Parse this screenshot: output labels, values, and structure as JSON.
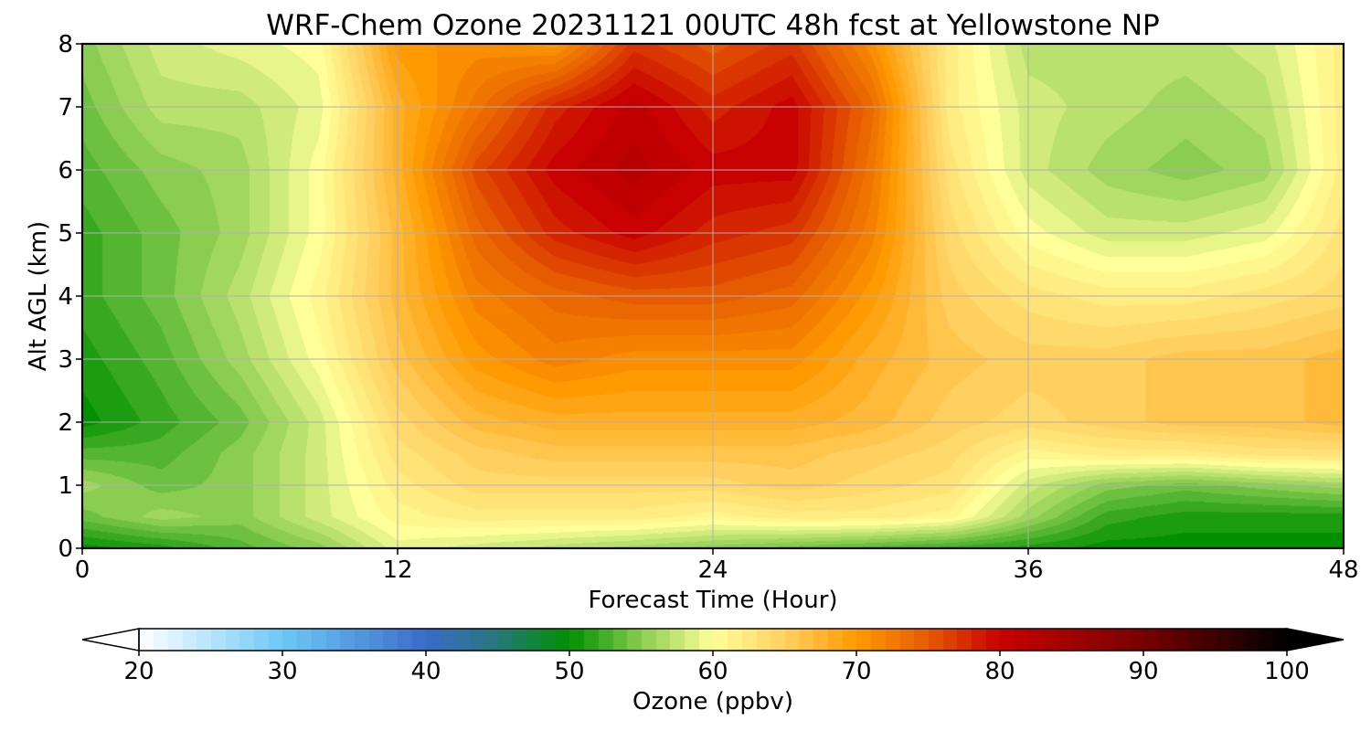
{
  "chart_data": {
    "type": "heatmap",
    "title": "WRF-Chem Ozone  20231121 00UTC 48h fcst at Yellowstone NP",
    "xlabel": "Forecast Time (Hour)",
    "ylabel": "Alt AGL (km)",
    "xlim": [
      0,
      48
    ],
    "ylim": [
      0,
      8
    ],
    "xticks": [
      "0",
      "12",
      "24",
      "36",
      "48"
    ],
    "yticks": [
      "0",
      "1",
      "2",
      "3",
      "4",
      "5",
      "6",
      "7",
      "8"
    ],
    "grid": true,
    "colorbar": {
      "label": "Ozone  (ppbv)",
      "min": 20,
      "max": 100,
      "ticks": [
        "20",
        "30",
        "40",
        "50",
        "60",
        "70",
        "80",
        "90",
        "100"
      ],
      "extend": "both",
      "colors": [
        {
          "value": 20,
          "color": "#ffffff"
        },
        {
          "value": 30,
          "color": "#6ec8f5"
        },
        {
          "value": 40,
          "color": "#3a6bc8"
        },
        {
          "value": 45,
          "color": "#267878"
        },
        {
          "value": 50,
          "color": "#009000"
        },
        {
          "value": 55,
          "color": "#8acd50"
        },
        {
          "value": 60,
          "color": "#ffff99"
        },
        {
          "value": 65,
          "color": "#ffd060"
        },
        {
          "value": 70,
          "color": "#ff9a00"
        },
        {
          "value": 75,
          "color": "#e65a00"
        },
        {
          "value": 80,
          "color": "#c80000"
        },
        {
          "value": 90,
          "color": "#780000"
        },
        {
          "value": 100,
          "color": "#000000"
        }
      ]
    },
    "x_hours": [
      0,
      3,
      6,
      9,
      12,
      15,
      18,
      21,
      24,
      27,
      30,
      33,
      36,
      39,
      42,
      45,
      48
    ],
    "y_km": [
      0,
      0.5,
      1,
      1.5,
      2,
      3,
      4,
      5,
      6,
      7,
      8
    ],
    "z_ppbv": [
      [
        50,
        51,
        53,
        55,
        59,
        58,
        57,
        56,
        55,
        54,
        53,
        52,
        51,
        50,
        50,
        50,
        50
      ],
      [
        54,
        56,
        55,
        58,
        61,
        62,
        62,
        62,
        61,
        62,
        62,
        61,
        56,
        52,
        51,
        51,
        51
      ],
      [
        56,
        54,
        55,
        58,
        62,
        64,
        64,
        64,
        64,
        65,
        64,
        63,
        58,
        55,
        54,
        55,
        56
      ],
      [
        53,
        53,
        55,
        58,
        63,
        65,
        66,
        66,
        66,
        66,
        65,
        64,
        61,
        62,
        62,
        63,
        63
      ],
      [
        50,
        52,
        54,
        58,
        64,
        67,
        68,
        68,
        68,
        68,
        67,
        65,
        64,
        65,
        66,
        66,
        67
      ],
      [
        51,
        53,
        56,
        60,
        66,
        70,
        72,
        71,
        71,
        71,
        68,
        66,
        65,
        65,
        66,
        66,
        67
      ],
      [
        52,
        54,
        57,
        61,
        67,
        72,
        74,
        75,
        75,
        74,
        70,
        65,
        63,
        62,
        62,
        63,
        64
      ],
      [
        52,
        54,
        56,
        60,
        67,
        74,
        78,
        80,
        78,
        77,
        72,
        64,
        60,
        58,
        58,
        59,
        63
      ],
      [
        53,
        55,
        56,
        60,
        68,
        76,
        80,
        82,
        80,
        80,
        73,
        63,
        58,
        56,
        55,
        56,
        62
      ],
      [
        54,
        57,
        57,
        59,
        68,
        73,
        78,
        81,
        78,
        80,
        74,
        62,
        58,
        57,
        56,
        57,
        62
      ],
      [
        55,
        58,
        59,
        60,
        70,
        71,
        70,
        77,
        75,
        77,
        71,
        62,
        57,
        57,
        57,
        58,
        62
      ]
    ]
  }
}
